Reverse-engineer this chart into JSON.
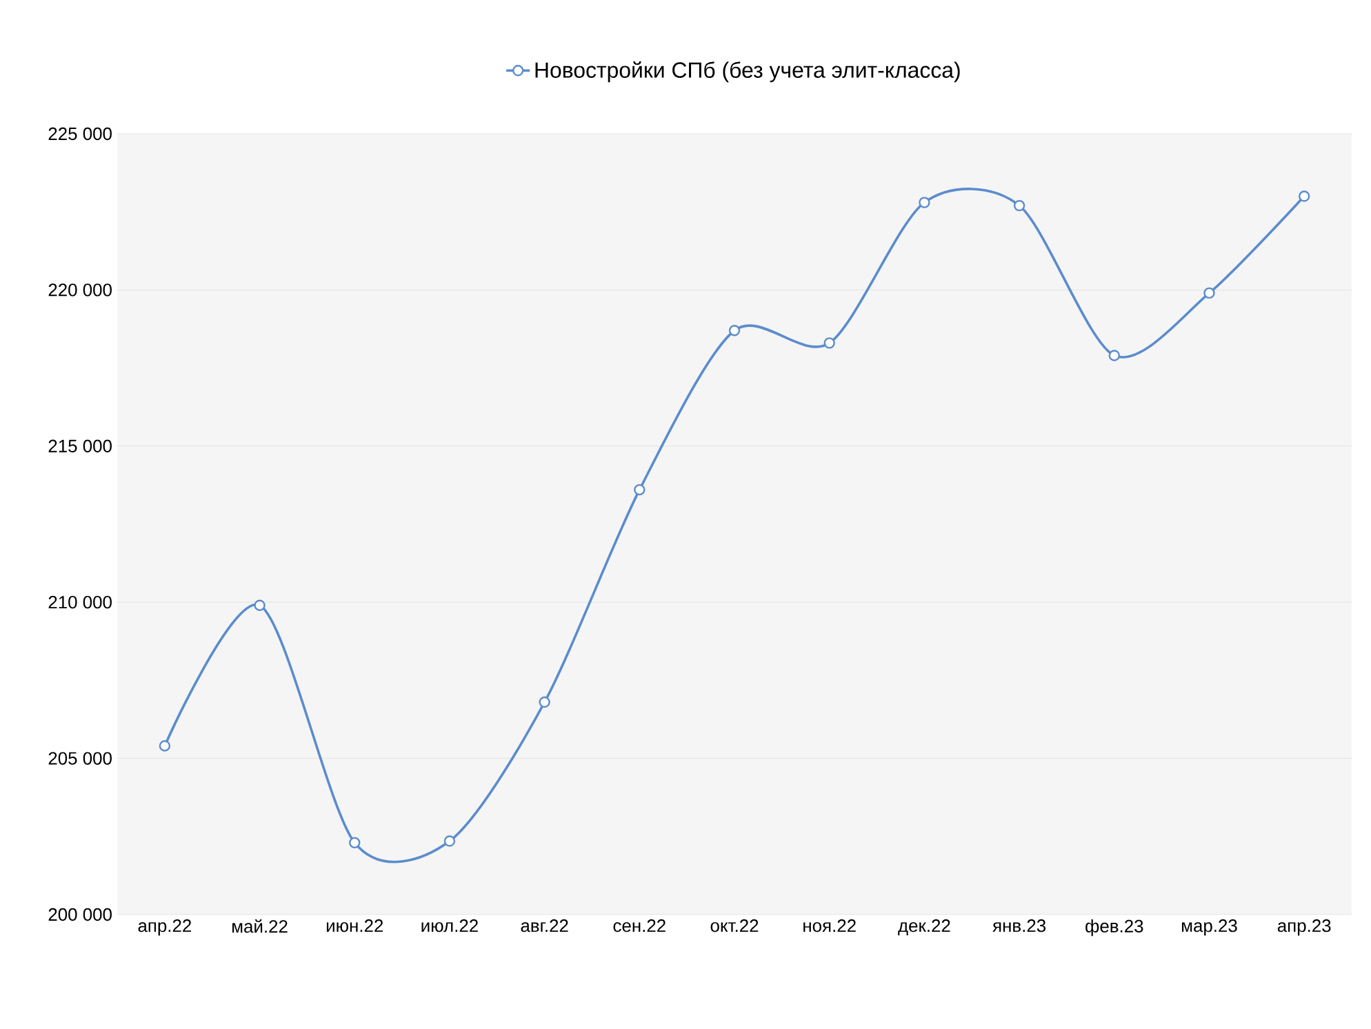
{
  "chart_data": {
    "type": "line",
    "categories": [
      "апр.22",
      "май.22",
      "июн.22",
      "июл.22",
      "авг.22",
      "сен.22",
      "окт.22",
      "ноя.22",
      "дек.22",
      "янв.23",
      "фев.23",
      "мар.23",
      "апр.23"
    ],
    "series": [
      {
        "name": "Новостройки СПб (без учета элит-класса)",
        "color": "#5b8ccc",
        "values": [
          205400,
          209900,
          202300,
          202350,
          206800,
          213600,
          218700,
          218300,
          222800,
          222700,
          217900,
          219900,
          223000
        ]
      }
    ],
    "ylim": [
      200000,
      225000
    ],
    "yticks": [
      {
        "value": 200000,
        "label": "200 000"
      },
      {
        "value": 205000,
        "label": "205 000"
      },
      {
        "value": 210000,
        "label": "210 000"
      },
      {
        "value": 215000,
        "label": "215 000"
      },
      {
        "value": 220000,
        "label": "220 000"
      },
      {
        "value": 225000,
        "label": "225 000"
      }
    ],
    "grid": "y",
    "legend": "top",
    "marker": "circle",
    "line_style": "solid"
  }
}
